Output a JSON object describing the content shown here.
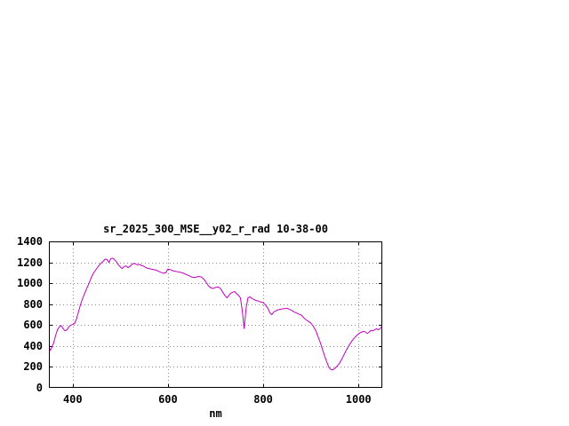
{
  "page": {
    "background": "#ffffff"
  },
  "chart_data": {
    "type": "line",
    "title": "sr_2025_300_MSE__y02_r_rad 10-38-00",
    "xlabel": "nm",
    "ylabel": "",
    "xlim": [
      350,
      1050
    ],
    "ylim": [
      0,
      1400
    ],
    "x_ticks": [
      400,
      600,
      800,
      1000
    ],
    "y_ticks": [
      0,
      200,
      400,
      600,
      800,
      1000,
      1200,
      1400
    ],
    "grid": true,
    "legend": "none",
    "line_color": "#c000c0",
    "grid_color": "#8a8a8a",
    "axis_color": "#000000",
    "series": [
      {
        "name": "sr_2025_300_MSE__y02_r_rad",
        "x": [
          350,
          353,
          356,
          360,
          364,
          368,
          372,
          376,
          380,
          384,
          388,
          392,
          396,
          400,
          404,
          408,
          412,
          416,
          420,
          424,
          428,
          432,
          436,
          440,
          444,
          448,
          452,
          456,
          460,
          464,
          468,
          472,
          476,
          480,
          484,
          488,
          492,
          496,
          500,
          504,
          508,
          512,
          516,
          520,
          524,
          528,
          532,
          536,
          540,
          544,
          548,
          552,
          556,
          560,
          565,
          570,
          575,
          580,
          585,
          590,
          595,
          600,
          605,
          610,
          615,
          620,
          625,
          630,
          635,
          640,
          645,
          650,
          655,
          660,
          665,
          670,
          675,
          680,
          685,
          690,
          695,
          700,
          705,
          710,
          715,
          720,
          724,
          728,
          732,
          736,
          740,
          744,
          748,
          752,
          756,
          760,
          764,
          768,
          772,
          776,
          780,
          785,
          790,
          795,
          800,
          805,
          810,
          814,
          818,
          822,
          826,
          830,
          835,
          840,
          845,
          850,
          855,
          860,
          865,
          870,
          875,
          880,
          885,
          890,
          895,
          900,
          905,
          910,
          915,
          920,
          925,
          930,
          935,
          938,
          941,
          944,
          947,
          950,
          955,
          960,
          965,
          970,
          975,
          980,
          985,
          990,
          995,
          1000,
          1005,
          1010,
          1014,
          1018,
          1022,
          1026,
          1030,
          1034,
          1038,
          1042,
          1046,
          1050
        ],
        "y": [
          390,
          360,
          385,
          430,
          500,
          555,
          585,
          595,
          565,
          545,
          555,
          585,
          600,
          605,
          615,
          660,
          725,
          790,
          845,
          890,
          935,
          975,
          1020,
          1065,
          1100,
          1125,
          1150,
          1175,
          1195,
          1210,
          1230,
          1225,
          1200,
          1235,
          1240,
          1225,
          1205,
          1175,
          1155,
          1140,
          1160,
          1165,
          1150,
          1160,
          1180,
          1190,
          1185,
          1175,
          1180,
          1170,
          1165,
          1155,
          1145,
          1140,
          1135,
          1130,
          1125,
          1115,
          1105,
          1095,
          1100,
          1135,
          1130,
          1120,
          1115,
          1110,
          1105,
          1100,
          1090,
          1080,
          1070,
          1060,
          1055,
          1060,
          1065,
          1060,
          1040,
          1010,
          975,
          955,
          950,
          960,
          965,
          950,
          915,
          880,
          860,
          885,
          905,
          915,
          920,
          900,
          885,
          860,
          740,
          565,
          760,
          860,
          870,
          855,
          845,
          835,
          830,
          820,
          815,
          790,
          760,
          715,
          700,
          725,
          735,
          745,
          750,
          755,
          758,
          760,
          750,
          740,
          725,
          715,
          705,
          695,
          670,
          650,
          635,
          620,
          590,
          550,
          490,
          430,
          360,
          290,
          230,
          195,
          180,
          172,
          175,
          185,
          205,
          235,
          275,
          320,
          365,
          405,
          440,
          470,
          495,
          515,
          530,
          540,
          535,
          520,
          530,
          550,
          545,
          555,
          565,
          555,
          570,
          590
        ]
      }
    ]
  }
}
